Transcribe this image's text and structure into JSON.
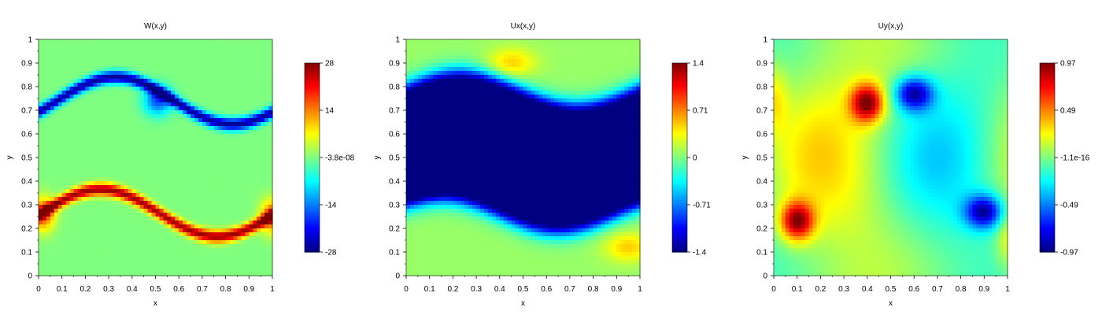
{
  "chart_data": [
    {
      "type": "heatmap",
      "title": "W(x,y)",
      "xlabel": "x",
      "ylabel": "y",
      "xlim": [
        0,
        1
      ],
      "ylim": [
        0,
        1
      ],
      "x_ticks": [
        "0",
        "0.1",
        "0.2",
        "0.3",
        "0.4",
        "0.5",
        "0.6",
        "0.7",
        "0.8",
        "0.9",
        "1"
      ],
      "y_ticks": [
        "0",
        "0.1",
        "0.2",
        "0.3",
        "0.4",
        "0.5",
        "0.6",
        "0.7",
        "0.8",
        "0.9",
        "1"
      ],
      "colormap": "jet",
      "colorbar": {
        "range": [
          -28,
          28
        ],
        "ticks": [
          "28",
          "14",
          "-3.8e-08",
          "-14",
          "-28"
        ]
      },
      "field": "vorticity: positive shear layer near y≈0.3 (wavy, rolled up at x≈0 and x≈1), negative shear layer near y≈0.75 (wavy, rolled up at x≈0.5), ~0 elsewhere"
    },
    {
      "type": "heatmap",
      "title": "Ux(x,y)",
      "xlabel": "x",
      "ylabel": "y",
      "xlim": [
        0,
        1
      ],
      "ylim": [
        0,
        1
      ],
      "x_ticks": [
        "0",
        "0.1",
        "0.2",
        "0.3",
        "0.4",
        "0.5",
        "0.6",
        "0.7",
        "0.8",
        "0.9",
        "1"
      ],
      "y_ticks": [
        "0",
        "0.1",
        "0.2",
        "0.3",
        "0.4",
        "0.5",
        "0.6",
        "0.7",
        "0.8",
        "0.9",
        "1"
      ],
      "colormap": "jet",
      "colorbar": {
        "range": [
          -1.4,
          1.4
        ],
        "ticks": [
          "1.4",
          "0.71",
          "0",
          "-0.71",
          "-1.4"
        ]
      },
      "field": "x-velocity: positive (red) for y<0.25 and y>0.8, negative (blue) band between, with wavy interfaces"
    },
    {
      "type": "heatmap",
      "title": "Uy(x,y)",
      "xlabel": "x",
      "ylabel": "y",
      "xlim": [
        0,
        1
      ],
      "ylim": [
        0,
        1
      ],
      "x_ticks": [
        "0",
        "0.1",
        "0.2",
        "0.3",
        "0.4",
        "0.5",
        "0.6",
        "0.7",
        "0.8",
        "0.9",
        "1"
      ],
      "y_ticks": [
        "0",
        "0.1",
        "0.2",
        "0.3",
        "0.4",
        "0.5",
        "0.6",
        "0.7",
        "0.8",
        "0.9",
        "1"
      ],
      "colormap": "jet",
      "colorbar": {
        "range": [
          -0.97,
          0.97
        ],
        "ticks": [
          "0.97",
          "0.49",
          "-1.1e-16",
          "-0.49",
          "-0.97"
        ]
      },
      "field": "y-velocity: maxima near (0.1,0.23) and (0.4,0.73), minima near (0.6,0.77) and (0.9,0.27)"
    }
  ]
}
